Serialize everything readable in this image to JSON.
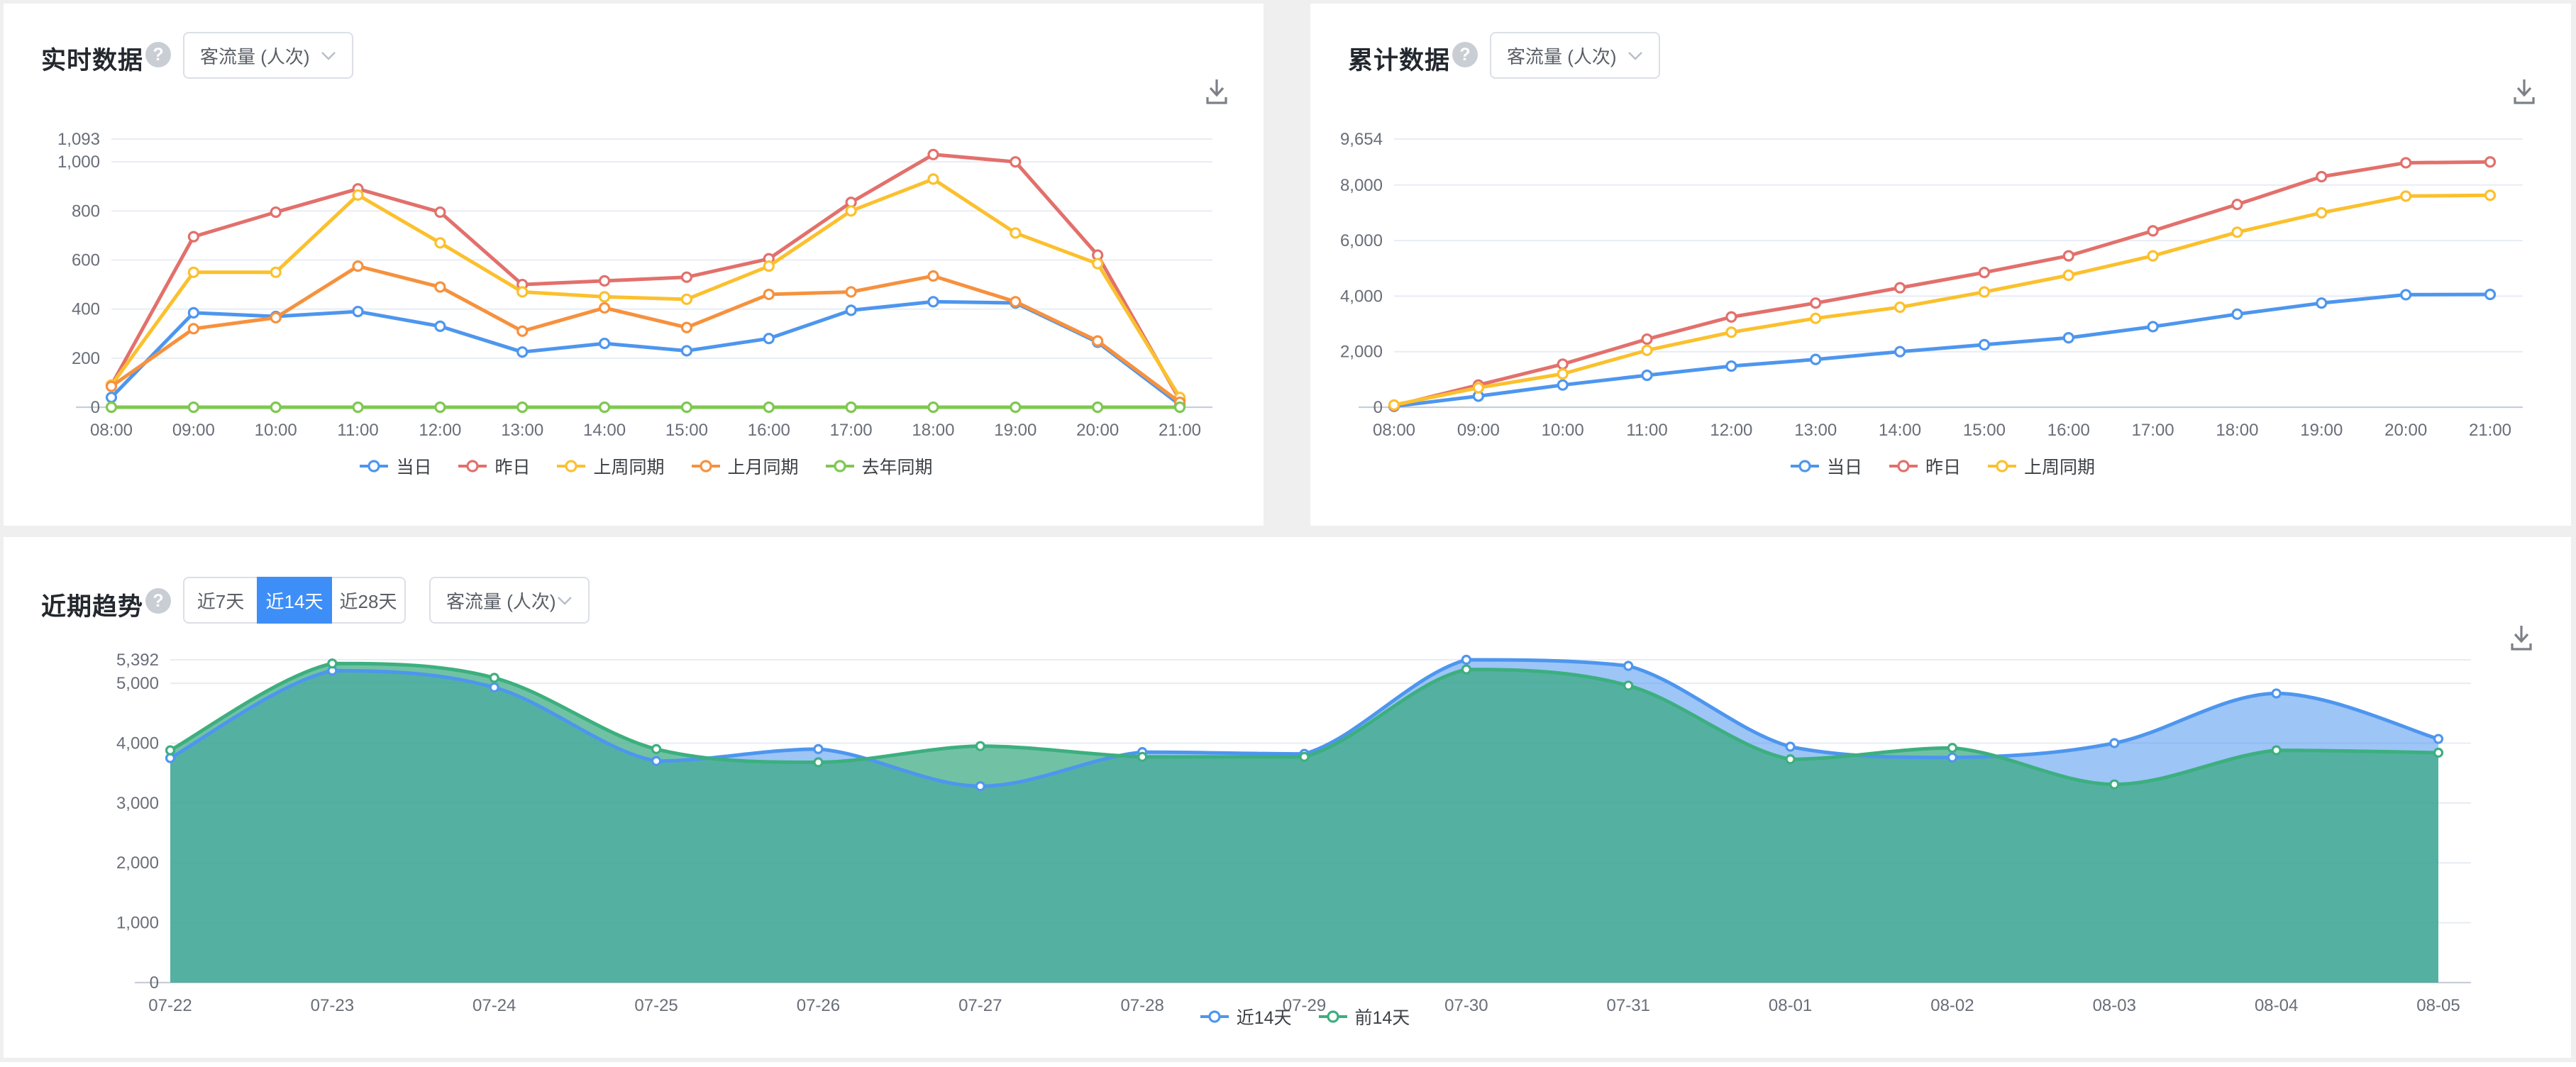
{
  "icons": {
    "help": "?"
  },
  "cards": {
    "realtime": {
      "title": "实时数据",
      "metric_select": {
        "value": "客流量 (人次)"
      }
    },
    "cumulative": {
      "title": "累计数据",
      "metric_select": {
        "value": "客流量 (人次)"
      }
    },
    "trend": {
      "title": "近期趋势",
      "range_buttons": [
        {
          "label": "近7天",
          "active": false
        },
        {
          "label": "近14天",
          "active": true
        },
        {
          "label": "近28天",
          "active": false
        }
      ],
      "metric_select": {
        "value": "客流量 (人次)"
      }
    }
  },
  "chart_data": [
    {
      "id": "realtime",
      "type": "line",
      "smooth": false,
      "title": "实时数据 - 客流量 (人次)",
      "x": [
        "08:00",
        "09:00",
        "10:00",
        "11:00",
        "12:00",
        "13:00",
        "14:00",
        "15:00",
        "16:00",
        "17:00",
        "18:00",
        "19:00",
        "20:00",
        "21:00"
      ],
      "ylim": [
        0,
        1093
      ],
      "ytick_values": [
        0,
        200,
        400,
        600,
        800,
        1000,
        1093
      ],
      "ytick_labels": [
        "0",
        "200",
        "400",
        "600",
        "800",
        "1,000",
        "1,093"
      ],
      "grid": true,
      "legend_position": "bottom",
      "series": [
        {
          "name": "当日",
          "color": "#4d96ee",
          "values": [
            40,
            385,
            370,
            390,
            330,
            225,
            260,
            230,
            280,
            395,
            430,
            425,
            265,
            10
          ]
        },
        {
          "name": "昨日",
          "color": "#e2706c",
          "values": [
            90,
            695,
            795,
            890,
            795,
            500,
            515,
            530,
            605,
            835,
            1030,
            1000,
            620,
            30
          ]
        },
        {
          "name": "上周同期",
          "color": "#fbc02d",
          "values": [
            90,
            550,
            550,
            865,
            670,
            470,
            450,
            440,
            575,
            800,
            930,
            710,
            585,
            40
          ]
        },
        {
          "name": "上月同期",
          "color": "#f6913e",
          "values": [
            85,
            320,
            365,
            575,
            490,
            310,
            405,
            325,
            460,
            470,
            535,
            430,
            270,
            20
          ]
        },
        {
          "name": "去年同期",
          "color": "#7ec850",
          "values": [
            0,
            0,
            0,
            0,
            0,
            0,
            0,
            0,
            0,
            0,
            0,
            0,
            0,
            0
          ]
        }
      ]
    },
    {
      "id": "cumulative",
      "type": "line",
      "smooth": false,
      "title": "累计数据 - 客流量 (人次)",
      "x": [
        "08:00",
        "09:00",
        "10:00",
        "11:00",
        "12:00",
        "13:00",
        "14:00",
        "15:00",
        "16:00",
        "17:00",
        "18:00",
        "19:00",
        "20:00",
        "21:00"
      ],
      "ylim": [
        0,
        9654
      ],
      "ytick_values": [
        0,
        2000,
        4000,
        6000,
        8000,
        9654
      ],
      "ytick_labels": [
        "0",
        "2,000",
        "4,000",
        "6,000",
        "8,000",
        "9,654"
      ],
      "grid": true,
      "legend_position": "bottom",
      "series": [
        {
          "name": "当日",
          "color": "#4d96ee",
          "values": [
            30,
            400,
            800,
            1150,
            1480,
            1720,
            2000,
            2250,
            2500,
            2900,
            3350,
            3750,
            4050,
            4060
          ]
        },
        {
          "name": "昨日",
          "color": "#e2706c",
          "values": [
            50,
            800,
            1550,
            2450,
            3250,
            3750,
            4300,
            4850,
            5450,
            6350,
            7300,
            8300,
            8800,
            8830
          ]
        },
        {
          "name": "上周同期",
          "color": "#fbc02d",
          "values": [
            80,
            700,
            1200,
            2050,
            2700,
            3200,
            3600,
            4150,
            4750,
            5450,
            6300,
            7000,
            7600,
            7630
          ]
        }
      ]
    },
    {
      "id": "trend",
      "type": "area",
      "smooth": true,
      "title": "近期趋势 - 近14天 - 客流量 (人次)",
      "x": [
        "07-22",
        "07-23",
        "07-24",
        "07-25",
        "07-26",
        "07-27",
        "07-28",
        "07-29",
        "07-30",
        "07-31",
        "08-01",
        "08-02",
        "08-03",
        "08-04",
        "08-05"
      ],
      "ylim": [
        0,
        5392
      ],
      "ytick_values": [
        0,
        1000,
        2000,
        3000,
        4000,
        5000,
        5392
      ],
      "ytick_labels": [
        "0",
        "1,000",
        "2,000",
        "3,000",
        "4,000",
        "5,000",
        "5,392"
      ],
      "grid": true,
      "legend_position": "bottom",
      "series": [
        {
          "name": "近14天",
          "color": "#4d96ee",
          "fill": "#4d96ee",
          "fill_opacity": 0.55,
          "values": [
            3750,
            5210,
            4930,
            3700,
            3900,
            3280,
            3850,
            3820,
            5392,
            5290,
            3940,
            3760,
            4000,
            4830,
            4070
          ]
        },
        {
          "name": "前14天",
          "color": "#3daf7f",
          "fill": "#35a87e",
          "fill_opacity": 0.7,
          "values": [
            3880,
            5330,
            5090,
            3900,
            3680,
            3950,
            3770,
            3770,
            5230,
            4960,
            3730,
            3920,
            3310,
            3880,
            3840
          ]
        }
      ]
    }
  ]
}
